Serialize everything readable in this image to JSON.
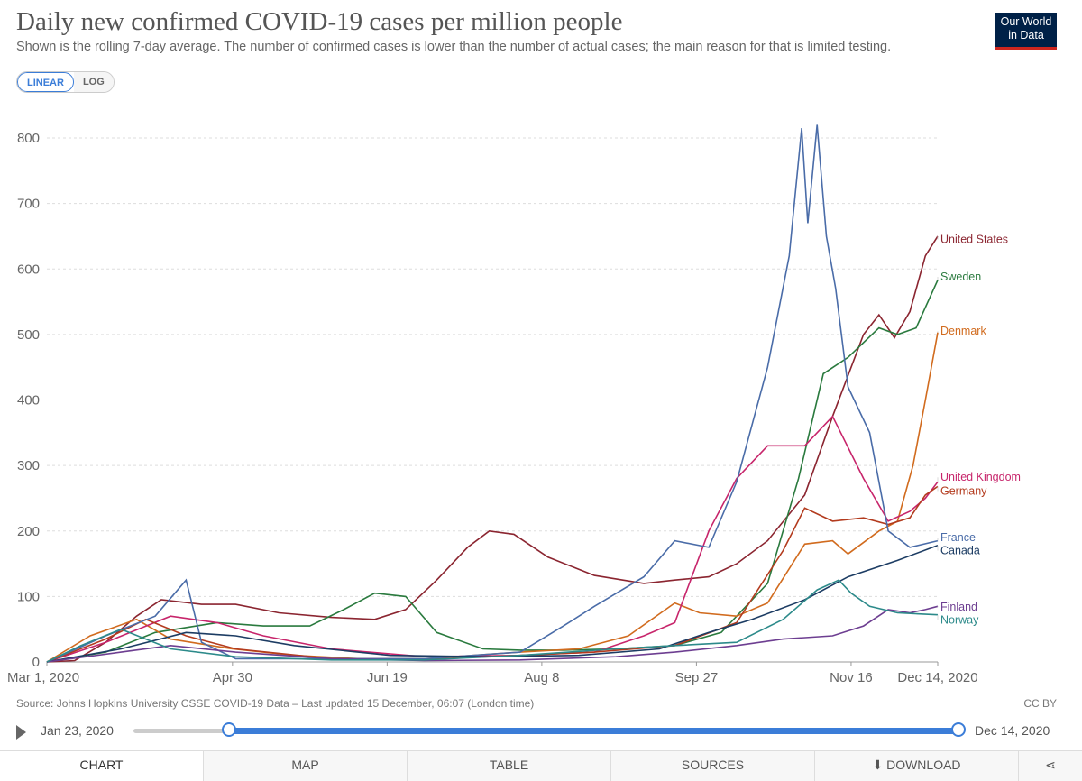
{
  "header": {
    "title": "Daily new confirmed COVID-19 cases per million people",
    "subtitle": "Shown is the rolling 7-day average. The number of confirmed cases is lower than the number of actual cases; the main reason for that is limited testing.",
    "logo_line1": "Our World",
    "logo_line2": "in Data"
  },
  "scale_toggle": {
    "linear": "LINEAR",
    "log": "LOG",
    "selected": "LINEAR"
  },
  "chart_data": {
    "type": "line",
    "title": "Daily new confirmed COVID-19 cases per million people",
    "xlabel": "",
    "ylabel": "",
    "ylim": [
      0,
      800
    ],
    "yticks": [
      0,
      100,
      200,
      300,
      400,
      500,
      600,
      700,
      800
    ],
    "xlim": [
      "2020-03-01",
      "2020-12-14"
    ],
    "xtick_labels": [
      "Mar 1, 2020",
      "Apr 30",
      "Jun 19",
      "Aug 8",
      "Sep 27",
      "Nov 16",
      "Dec 14, 2020"
    ],
    "xtick_dates": [
      "2020-03-01",
      "2020-04-30",
      "2020-06-19",
      "2020-08-08",
      "2020-09-27",
      "2020-11-16",
      "2020-12-14"
    ],
    "grid": true,
    "legend": "right-end labels",
    "series": [
      {
        "name": "United States",
        "color": "#8b2530",
        "points": [
          [
            "2020-03-01",
            0
          ],
          [
            "2020-03-10",
            2
          ],
          [
            "2020-03-20",
            30
          ],
          [
            "2020-03-30",
            70
          ],
          [
            "2020-04-07",
            95
          ],
          [
            "2020-04-20",
            88
          ],
          [
            "2020-05-01",
            88
          ],
          [
            "2020-05-15",
            75
          ],
          [
            "2020-06-01",
            68
          ],
          [
            "2020-06-15",
            65
          ],
          [
            "2020-06-25",
            80
          ],
          [
            "2020-07-05",
            125
          ],
          [
            "2020-07-15",
            175
          ],
          [
            "2020-07-22",
            200
          ],
          [
            "2020-07-30",
            195
          ],
          [
            "2020-08-10",
            160
          ],
          [
            "2020-08-25",
            132
          ],
          [
            "2020-09-10",
            120
          ],
          [
            "2020-09-20",
            125
          ],
          [
            "2020-10-01",
            130
          ],
          [
            "2020-10-10",
            150
          ],
          [
            "2020-10-20",
            185
          ],
          [
            "2020-11-01",
            255
          ],
          [
            "2020-11-10",
            375
          ],
          [
            "2020-11-20",
            500
          ],
          [
            "2020-11-25",
            530
          ],
          [
            "2020-11-30",
            495
          ],
          [
            "2020-12-05",
            535
          ],
          [
            "2020-12-10",
            620
          ],
          [
            "2020-12-14",
            650
          ]
        ]
      },
      {
        "name": "Sweden",
        "color": "#2a7a3e",
        "points": [
          [
            "2020-03-01",
            0
          ],
          [
            "2020-03-20",
            15
          ],
          [
            "2020-04-05",
            45
          ],
          [
            "2020-04-25",
            60
          ],
          [
            "2020-05-10",
            55
          ],
          [
            "2020-05-25",
            55
          ],
          [
            "2020-06-05",
            80
          ],
          [
            "2020-06-15",
            105
          ],
          [
            "2020-06-25",
            100
          ],
          [
            "2020-07-05",
            45
          ],
          [
            "2020-07-20",
            20
          ],
          [
            "2020-08-01",
            18
          ],
          [
            "2020-08-15",
            18
          ],
          [
            "2020-09-01",
            20
          ],
          [
            "2020-09-20",
            25
          ],
          [
            "2020-10-05",
            45
          ],
          [
            "2020-10-20",
            120
          ],
          [
            "2020-10-30",
            280
          ],
          [
            "2020-11-07",
            440
          ],
          [
            "2020-11-15",
            465
          ],
          [
            "2020-11-25",
            510
          ],
          [
            "2020-12-01",
            500
          ],
          [
            "2020-12-07",
            510
          ],
          [
            "2020-12-14",
            583
          ]
        ]
      },
      {
        "name": "Denmark",
        "color": "#d16b1e",
        "points": [
          [
            "2020-03-01",
            0
          ],
          [
            "2020-03-15",
            40
          ],
          [
            "2020-03-30",
            65
          ],
          [
            "2020-04-10",
            35
          ],
          [
            "2020-04-30",
            20
          ],
          [
            "2020-05-20",
            10
          ],
          [
            "2020-06-10",
            5
          ],
          [
            "2020-07-01",
            5
          ],
          [
            "2020-08-01",
            15
          ],
          [
            "2020-08-20",
            20
          ],
          [
            "2020-09-05",
            40
          ],
          [
            "2020-09-20",
            90
          ],
          [
            "2020-09-28",
            75
          ],
          [
            "2020-10-10",
            70
          ],
          [
            "2020-10-20",
            90
          ],
          [
            "2020-11-01",
            180
          ],
          [
            "2020-11-10",
            185
          ],
          [
            "2020-11-15",
            165
          ],
          [
            "2020-11-25",
            200
          ],
          [
            "2020-12-01",
            215
          ],
          [
            "2020-12-06",
            300
          ],
          [
            "2020-12-10",
            400
          ],
          [
            "2020-12-14",
            503
          ]
        ]
      },
      {
        "name": "United Kingdom",
        "color": "#c7256b",
        "points": [
          [
            "2020-03-01",
            0
          ],
          [
            "2020-03-20",
            30
          ],
          [
            "2020-04-10",
            70
          ],
          [
            "2020-04-25",
            60
          ],
          [
            "2020-05-10",
            40
          ],
          [
            "2020-06-01",
            20
          ],
          [
            "2020-07-01",
            8
          ],
          [
            "2020-08-01",
            10
          ],
          [
            "2020-08-25",
            15
          ],
          [
            "2020-09-10",
            40
          ],
          [
            "2020-09-20",
            60
          ],
          [
            "2020-10-01",
            200
          ],
          [
            "2020-10-10",
            280
          ],
          [
            "2020-10-20",
            330
          ],
          [
            "2020-11-01",
            330
          ],
          [
            "2020-11-10",
            375
          ],
          [
            "2020-11-20",
            280
          ],
          [
            "2020-11-28",
            215
          ],
          [
            "2020-12-05",
            230
          ],
          [
            "2020-12-10",
            250
          ],
          [
            "2020-12-14",
            275
          ]
        ]
      },
      {
        "name": "Germany",
        "color": "#b33b1e",
        "points": [
          [
            "2020-03-01",
            0
          ],
          [
            "2020-03-20",
            35
          ],
          [
            "2020-04-02",
            65
          ],
          [
            "2020-04-15",
            40
          ],
          [
            "2020-05-01",
            20
          ],
          [
            "2020-06-01",
            5
          ],
          [
            "2020-07-01",
            4
          ],
          [
            "2020-08-01",
            10
          ],
          [
            "2020-08-25",
            15
          ],
          [
            "2020-09-20",
            25
          ],
          [
            "2020-10-10",
            60
          ],
          [
            "2020-10-25",
            170
          ],
          [
            "2020-11-01",
            235
          ],
          [
            "2020-11-10",
            215
          ],
          [
            "2020-11-20",
            220
          ],
          [
            "2020-11-28",
            210
          ],
          [
            "2020-12-05",
            220
          ],
          [
            "2020-12-10",
            255
          ],
          [
            "2020-12-14",
            268
          ]
        ]
      },
      {
        "name": "France",
        "color": "#4a6ca8",
        "points": [
          [
            "2020-03-01",
            0
          ],
          [
            "2020-03-20",
            40
          ],
          [
            "2020-04-05",
            70
          ],
          [
            "2020-04-15",
            125
          ],
          [
            "2020-04-20",
            30
          ],
          [
            "2020-05-01",
            5
          ],
          [
            "2020-06-01",
            5
          ],
          [
            "2020-07-01",
            5
          ],
          [
            "2020-08-01",
            15
          ],
          [
            "2020-08-15",
            55
          ],
          [
            "2020-08-25",
            85
          ],
          [
            "2020-09-10",
            130
          ],
          [
            "2020-09-20",
            185
          ],
          [
            "2020-10-01",
            175
          ],
          [
            "2020-10-10",
            275
          ],
          [
            "2020-10-20",
            450
          ],
          [
            "2020-10-27",
            620
          ],
          [
            "2020-10-31",
            815
          ],
          [
            "2020-11-02",
            670
          ],
          [
            "2020-11-05",
            820
          ],
          [
            "2020-11-08",
            650
          ],
          [
            "2020-11-11",
            570
          ],
          [
            "2020-11-15",
            420
          ],
          [
            "2020-11-22",
            350
          ],
          [
            "2020-11-28",
            200
          ],
          [
            "2020-12-05",
            175
          ],
          [
            "2020-12-14",
            185
          ]
        ]
      },
      {
        "name": "Canada",
        "color": "#1c3c63",
        "points": [
          [
            "2020-03-01",
            0
          ],
          [
            "2020-03-25",
            20
          ],
          [
            "2020-04-15",
            45
          ],
          [
            "2020-05-01",
            40
          ],
          [
            "2020-05-20",
            25
          ],
          [
            "2020-06-20",
            10
          ],
          [
            "2020-07-20",
            8
          ],
          [
            "2020-08-20",
            10
          ],
          [
            "2020-09-15",
            20
          ],
          [
            "2020-10-01",
            45
          ],
          [
            "2020-10-15",
            65
          ],
          [
            "2020-11-01",
            95
          ],
          [
            "2020-11-15",
            130
          ],
          [
            "2020-12-01",
            155
          ],
          [
            "2020-12-14",
            178
          ]
        ]
      },
      {
        "name": "Finland",
        "color": "#6d3e91",
        "points": [
          [
            "2020-03-01",
            0
          ],
          [
            "2020-03-25",
            15
          ],
          [
            "2020-04-10",
            25
          ],
          [
            "2020-05-01",
            15
          ],
          [
            "2020-06-01",
            5
          ],
          [
            "2020-07-01",
            2
          ],
          [
            "2020-08-01",
            3
          ],
          [
            "2020-09-01",
            8
          ],
          [
            "2020-09-20",
            15
          ],
          [
            "2020-10-10",
            25
          ],
          [
            "2020-10-25",
            35
          ],
          [
            "2020-11-10",
            40
          ],
          [
            "2020-11-20",
            55
          ],
          [
            "2020-11-28",
            80
          ],
          [
            "2020-12-05",
            75
          ],
          [
            "2020-12-10",
            80
          ],
          [
            "2020-12-14",
            85
          ]
        ]
      },
      {
        "name": "Norway",
        "color": "#2c8a8a",
        "points": [
          [
            "2020-03-01",
            0
          ],
          [
            "2020-03-12",
            25
          ],
          [
            "2020-03-25",
            50
          ],
          [
            "2020-04-10",
            20
          ],
          [
            "2020-05-01",
            8
          ],
          [
            "2020-06-01",
            3
          ],
          [
            "2020-07-01",
            3
          ],
          [
            "2020-08-01",
            10
          ],
          [
            "2020-09-01",
            20
          ],
          [
            "2020-09-20",
            25
          ],
          [
            "2020-10-10",
            30
          ],
          [
            "2020-10-25",
            65
          ],
          [
            "2020-11-05",
            110
          ],
          [
            "2020-11-12",
            125
          ],
          [
            "2020-11-16",
            105
          ],
          [
            "2020-11-22",
            85
          ],
          [
            "2020-12-01",
            75
          ],
          [
            "2020-12-14",
            72
          ]
        ]
      }
    ]
  },
  "series_labels": {
    "united_states": "United States",
    "sweden": "Sweden",
    "denmark": "Denmark",
    "united_kingdom": "United Kingdom",
    "germany": "Germany",
    "france": "France",
    "canada": "Canada",
    "finland": "Finland",
    "norway": "Norway"
  },
  "footer": {
    "source": "Source: Johns Hopkins University CSSE COVID-19 Data – Last updated 15 December, 06:07 (London time)",
    "license": "CC BY"
  },
  "timeline": {
    "start_label": "Jan 23, 2020",
    "end_label": "Dec 14, 2020"
  },
  "tabs": [
    {
      "label": "CHART",
      "active": true
    },
    {
      "label": "MAP"
    },
    {
      "label": "TABLE"
    },
    {
      "label": "SOURCES"
    },
    {
      "label": "DOWNLOAD",
      "icon": "download-icon"
    }
  ],
  "share_icon": "share-icon"
}
